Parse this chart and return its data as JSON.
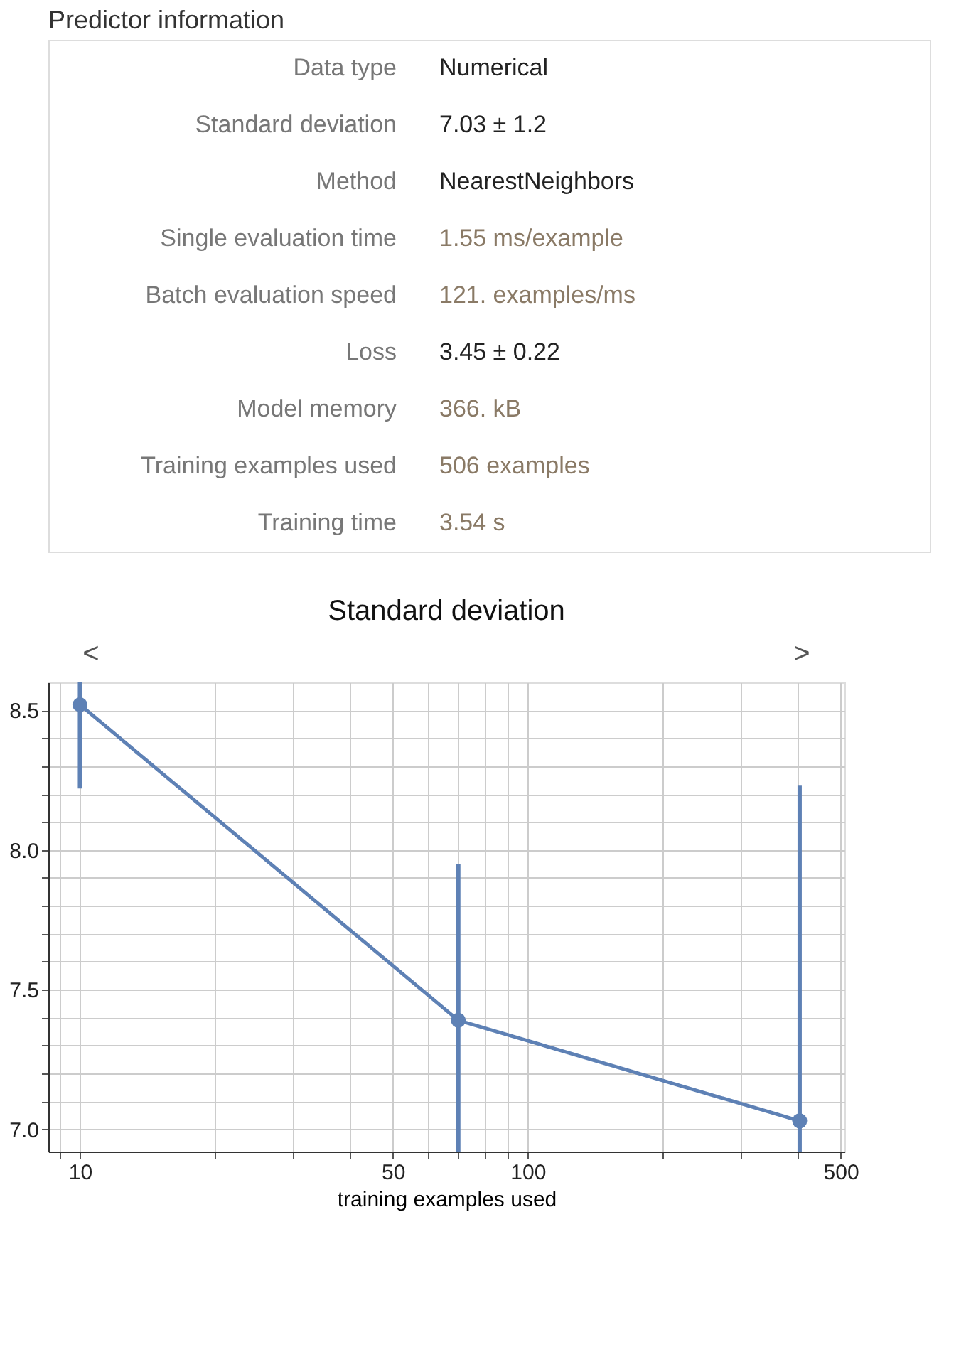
{
  "chart_data": [
    {
      "type": "other",
      "title": "Predictor information",
      "categories": [
        "Data type",
        "Standard deviation",
        "Method",
        "Single evaluation time",
        "Batch evaluation speed",
        "Loss",
        "Model memory",
        "Training examples used",
        "Training time"
      ],
      "annotations": [
        "Numerical",
        "7.03 ± 1.2",
        "NearestNeighbors",
        "1.55 ms/example",
        "121. examples/ms",
        "3.45 ± 0.22",
        "366. kB",
        "506 examples",
        "3.54 s"
      ],
      "colors": [
        "#222222",
        "#222222",
        "#222222",
        "#8a7a66",
        "#8a7a66",
        "#222222",
        "#8a7a66",
        "#8a7a66",
        "#8a7a66"
      ]
    },
    {
      "type": "line",
      "title": "Standard deviation",
      "xlabel": "training examples used",
      "log": "x",
      "grid": true,
      "marker": "circle",
      "annotations": [
        "<",
        ">"
      ],
      "x": [
        10,
        70,
        405
      ],
      "series": [
        {
          "color": "#5e81b5",
          "values": [
            8.52,
            7.39,
            7.03
          ],
          "errors": [
            [
              8.22,
              8.6
            ],
            [
              6.92,
              7.95
            ],
            [
              6.92,
              8.23
            ]
          ]
        }
      ],
      "xlim": [
        8.5,
        510
      ],
      "ylim": [
        6.92,
        8.6
      ],
      "xticks": [
        {
          "value": 9,
          "label": null
        },
        10,
        {
          "value": 20,
          "label": null
        },
        {
          "value": 30,
          "label": null
        },
        {
          "value": 40,
          "label": null
        },
        50,
        {
          "value": 60,
          "label": null
        },
        {
          "value": 70,
          "label": null
        },
        {
          "value": 80,
          "label": null
        },
        {
          "value": 90,
          "label": null
        },
        100,
        {
          "value": 200,
          "label": null
        },
        {
          "value": 300,
          "label": null
        },
        {
          "value": 400,
          "label": null
        },
        500
      ],
      "yticks": [
        {
          "value": 7,
          "label": "7.0"
        },
        {
          "value": 7.1,
          "label": null
        },
        {
          "value": 7.2,
          "label": null
        },
        {
          "value": 7.3,
          "label": null
        },
        {
          "value": 7.4,
          "label": null
        },
        7.5,
        {
          "value": 7.6,
          "label": null
        },
        {
          "value": 7.7,
          "label": null
        },
        {
          "value": 7.8,
          "label": null
        },
        {
          "value": 7.9,
          "label": null
        },
        {
          "value": 8,
          "label": "8.0"
        },
        {
          "value": 8.1,
          "label": null
        },
        {
          "value": 8.2,
          "label": null
        },
        {
          "value": 8.3,
          "label": null
        },
        {
          "value": 8.4,
          "label": null
        },
        8.5
      ]
    }
  ]
}
